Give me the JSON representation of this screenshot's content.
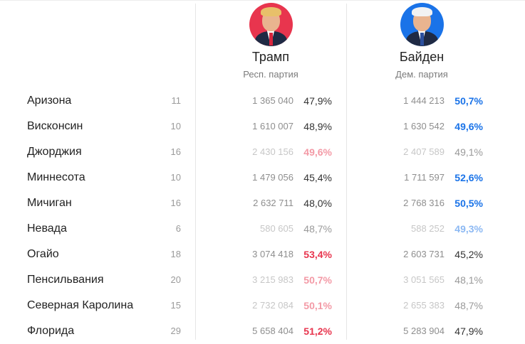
{
  "colors": {
    "republican": "#e8354e",
    "democrat": "#1a73e8",
    "trump_bg": "#e8354e",
    "biden_bg": "#1a73e8"
  },
  "candidates": [
    {
      "name": "Трамп",
      "party": "Респ. партия",
      "icon": "trump-portrait"
    },
    {
      "name": "Байден",
      "party": "Дем. партия",
      "icon": "biden-portrait"
    }
  ],
  "rows": [
    {
      "state": "Аризона",
      "ev": "11",
      "trump_votes": "1 365 040",
      "trump_pct": "47,9%",
      "biden_votes": "1 444 213",
      "biden_pct": "50,7%",
      "winner": "biden",
      "faded": false
    },
    {
      "state": "Висконсин",
      "ev": "10",
      "trump_votes": "1 610 007",
      "trump_pct": "48,9%",
      "biden_votes": "1 630 542",
      "biden_pct": "49,6%",
      "winner": "biden",
      "faded": false
    },
    {
      "state": "Джорджия",
      "ev": "16",
      "trump_votes": "2 430 156",
      "trump_pct": "49,6%",
      "biden_votes": "2 407 589",
      "biden_pct": "49,1%",
      "winner": "trump",
      "faded": true
    },
    {
      "state": "Миннесота",
      "ev": "10",
      "trump_votes": "1 479 056",
      "trump_pct": "45,4%",
      "biden_votes": "1 711 597",
      "biden_pct": "52,6%",
      "winner": "biden",
      "faded": false
    },
    {
      "state": "Мичиган",
      "ev": "16",
      "trump_votes": "2 632 711",
      "trump_pct": "48,0%",
      "biden_votes": "2 768 316",
      "biden_pct": "50,5%",
      "winner": "biden",
      "faded": false
    },
    {
      "state": "Невада",
      "ev": "6",
      "trump_votes": "580 605",
      "trump_pct": "48,7%",
      "biden_votes": "588 252",
      "biden_pct": "49,3%",
      "winner": "biden",
      "faded": true
    },
    {
      "state": "Огайо",
      "ev": "18",
      "trump_votes": "3 074 418",
      "trump_pct": "53,4%",
      "biden_votes": "2 603 731",
      "biden_pct": "45,2%",
      "winner": "trump",
      "faded": false
    },
    {
      "state": "Пенсильвания",
      "ev": "20",
      "trump_votes": "3 215 983",
      "trump_pct": "50,7%",
      "biden_votes": "3 051 565",
      "biden_pct": "48,1%",
      "winner": "trump",
      "faded": true
    },
    {
      "state": "Северная Каролина",
      "ev": "15",
      "trump_votes": "2 732 084",
      "trump_pct": "50,1%",
      "biden_votes": "2 655 383",
      "biden_pct": "48,7%",
      "winner": "trump",
      "faded": true
    },
    {
      "state": "Флорида",
      "ev": "29",
      "trump_votes": "5 658 404",
      "trump_pct": "51,2%",
      "biden_votes": "5 283 904",
      "biden_pct": "47,9%",
      "winner": "trump",
      "faded": false
    }
  ]
}
